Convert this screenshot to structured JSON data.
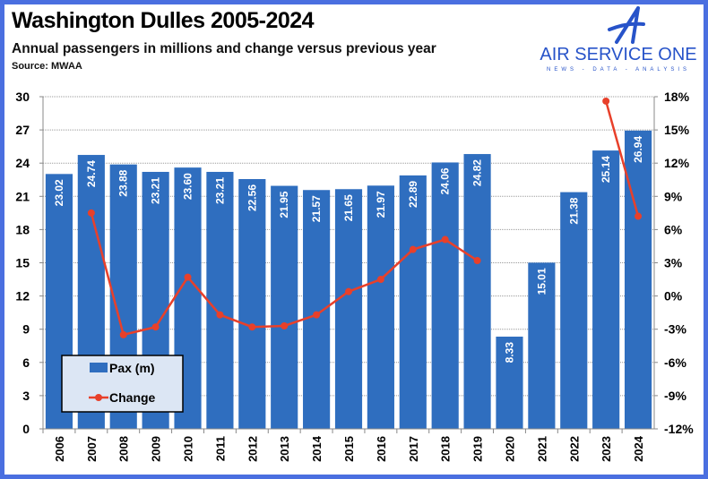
{
  "header": {
    "title": "Washington Dulles 2005-2024",
    "subtitle": "Annual passengers in millions and change versus previous year",
    "source": "Source: MWAA"
  },
  "logo": {
    "name": "AIR SERVICE ONE",
    "tagline": "NEWS - DATA - ANALYSIS"
  },
  "colors": {
    "bar": "#2f6ebf",
    "line": "#e8402a",
    "frame": "#4a6fe0",
    "legend_bg": "#dce6f4"
  },
  "chart_data": {
    "type": "bar+line",
    "title": "Washington Dulles 2005-2024",
    "categories": [
      "2006",
      "2007",
      "2008",
      "2009",
      "2010",
      "2011",
      "2012",
      "2013",
      "2014",
      "2015",
      "2016",
      "2017",
      "2018",
      "2019",
      "2020",
      "2021",
      "2022",
      "2023",
      "2024"
    ],
    "series": [
      {
        "name": "Pax (m)",
        "type": "bar",
        "axis": "left",
        "values": [
          23.02,
          24.74,
          23.88,
          23.21,
          23.6,
          23.21,
          22.56,
          21.95,
          21.57,
          21.65,
          21.97,
          22.89,
          24.06,
          24.82,
          8.33,
          15.01,
          21.38,
          25.14,
          26.94
        ],
        "labels": [
          "23.02",
          "24.74",
          "23.88",
          "23.21",
          "23.60",
          "23.21",
          "22.56",
          "21.95",
          "21.57",
          "21.65",
          "21.97",
          "22.89",
          "24.06",
          "24.82",
          "8.33",
          "15.01",
          "21.38",
          "25.14",
          "26.94"
        ]
      },
      {
        "name": "Change",
        "type": "line",
        "axis": "right",
        "values": [
          null,
          7.5,
          -3.5,
          -2.8,
          1.7,
          -1.7,
          -2.8,
          -2.7,
          -1.7,
          0.4,
          1.5,
          4.2,
          5.1,
          3.2,
          null,
          null,
          null,
          17.6,
          7.2
        ]
      }
    ],
    "left_axis": {
      "ylim": [
        0,
        30
      ],
      "ticks": [
        "0",
        "3",
        "6",
        "9",
        "12",
        "15",
        "18",
        "21",
        "24",
        "27",
        "30"
      ]
    },
    "right_axis": {
      "ylim": [
        -12,
        18
      ],
      "ticks": [
        "-12%",
        "-9%",
        "-6%",
        "-3%",
        "0%",
        "3%",
        "6%",
        "9%",
        "12%",
        "15%",
        "18%"
      ]
    },
    "grid": true,
    "legend": "bottom-left"
  }
}
